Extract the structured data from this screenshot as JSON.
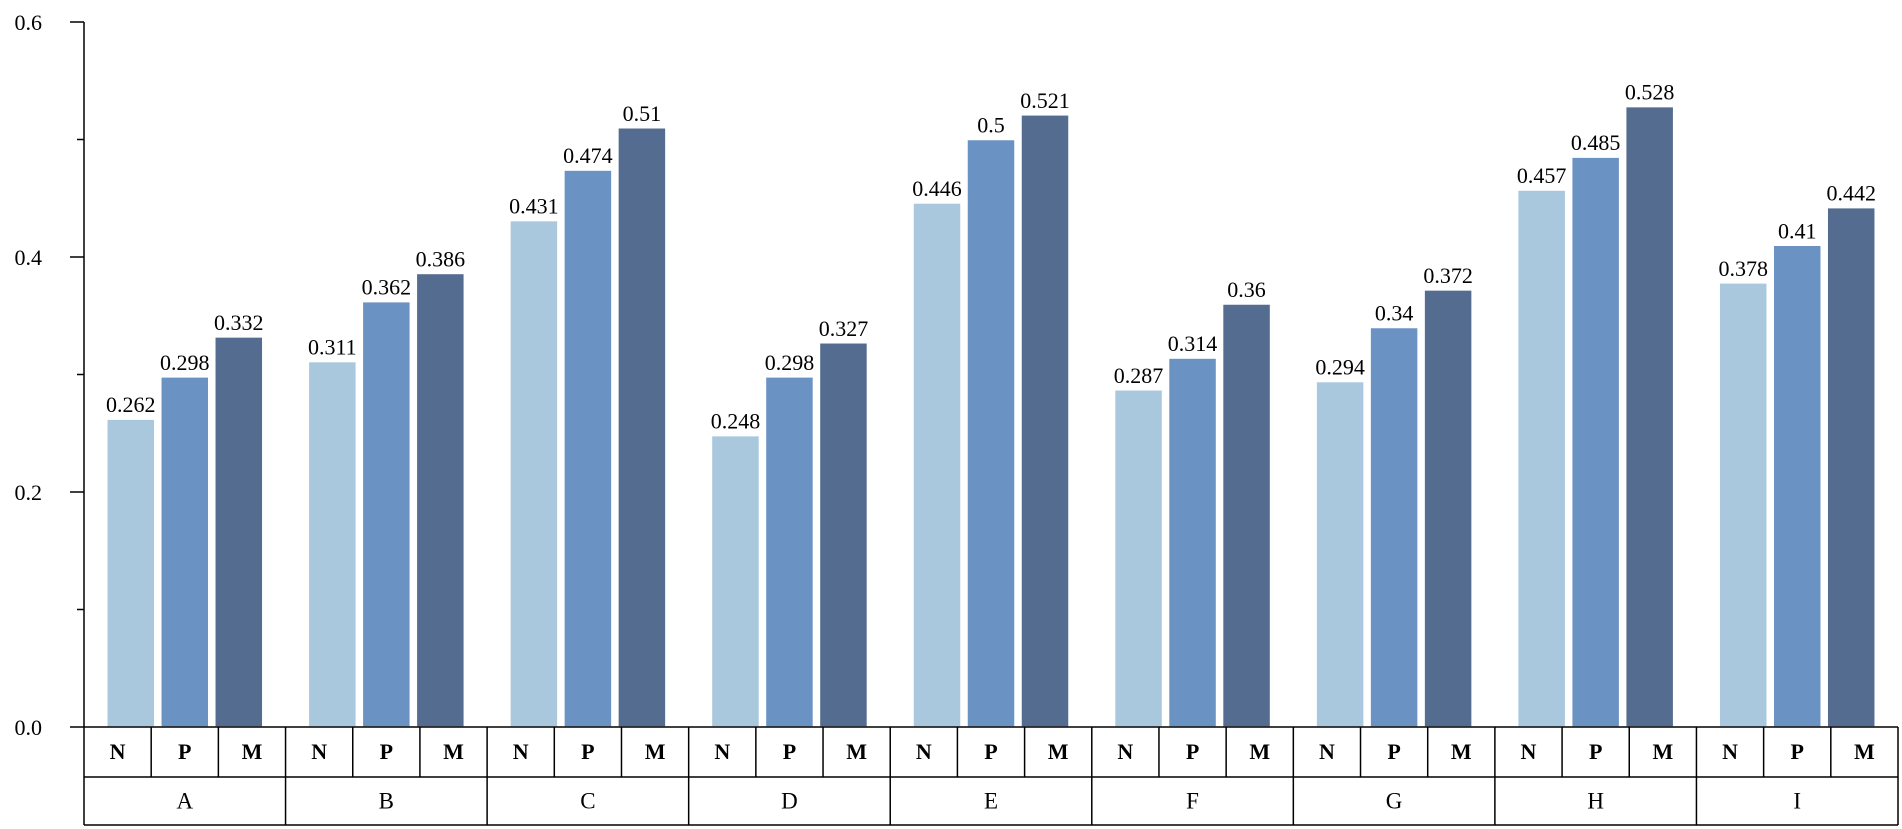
{
  "chart_data": {
    "type": "bar",
    "categories": [
      "A",
      "B",
      "C",
      "D",
      "E",
      "F",
      "G",
      "H",
      "I"
    ],
    "series": [
      {
        "name": "N",
        "color": "#a9c8de",
        "values": [
          0.262,
          0.311,
          0.431,
          0.248,
          0.446,
          0.287,
          0.294,
          0.457,
          0.378
        ]
      },
      {
        "name": "P",
        "color": "#6a93c4",
        "values": [
          0.298,
          0.362,
          0.474,
          0.298,
          0.5,
          0.314,
          0.34,
          0.485,
          0.41
        ]
      },
      {
        "name": "M",
        "color": "#546c8f",
        "values": [
          0.332,
          0.386,
          0.51,
          0.327,
          0.521,
          0.36,
          0.372,
          0.528,
          0.442
        ]
      }
    ],
    "data_labels": [
      [
        "0.262",
        "0.311",
        "0.431",
        "0.248",
        "0.446",
        "0.287",
        "0.294",
        "0.457",
        "0.378"
      ],
      [
        "0.298",
        "0.362",
        "0.474",
        "0.298",
        "0.5",
        "0.314",
        "0.34",
        "0.485",
        "0.41"
      ],
      [
        "0.332",
        "0.386",
        "0.51",
        "0.327",
        "0.521",
        "0.36",
        "0.372",
        "0.528",
        "0.442"
      ]
    ],
    "ylim": [
      0,
      0.6
    ],
    "y_ticks": [
      0,
      0.2,
      0.4,
      0.6
    ],
    "y_tick_labels": [
      "0.0",
      "0.2",
      "0.4",
      "0.6"
    ],
    "y_minor_ticks": [
      0.1,
      0.3,
      0.5
    ],
    "title": "",
    "xlabel": "",
    "ylabel": "",
    "grid": false,
    "legend": "none"
  }
}
